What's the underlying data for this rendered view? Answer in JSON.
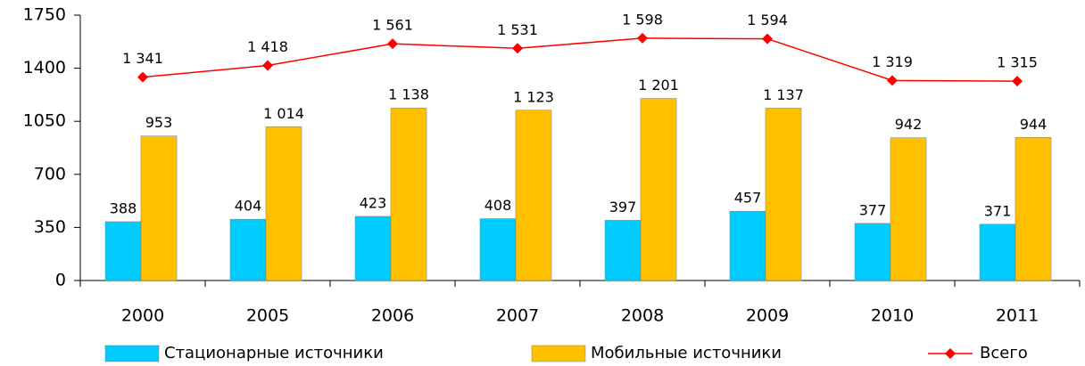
{
  "chart_data": {
    "type": "bar",
    "categories": [
      "2000",
      "2005",
      "2006",
      "2007",
      "2008",
      "2009",
      "2010",
      "2011"
    ],
    "ylim": [
      0,
      1750
    ],
    "yticks": [
      0,
      350,
      700,
      1050,
      1400,
      1750
    ],
    "series": [
      {
        "name": "Стационарные источники",
        "color": "#00ccff",
        "type": "bar",
        "values": [
          388,
          404,
          423,
          408,
          397,
          457,
          377,
          371
        ]
      },
      {
        "name": "Мобильные источники",
        "color": "#ffc000",
        "type": "bar",
        "values": [
          953,
          1014,
          1138,
          1123,
          1201,
          1137,
          942,
          944
        ],
        "value_labels": [
          "953",
          "1 014",
          "1 138",
          "1 123",
          "1 201",
          "1 137",
          "942",
          "944"
        ]
      },
      {
        "name": "Всего",
        "color": "#ff0000",
        "type": "line",
        "values": [
          1341,
          1418,
          1561,
          1531,
          1598,
          1594,
          1319,
          1315
        ],
        "value_labels": [
          "1 341",
          "1 418",
          "1 561",
          "1 531",
          "1 598",
          "1 594",
          "1 319",
          "1 315"
        ]
      }
    ]
  }
}
